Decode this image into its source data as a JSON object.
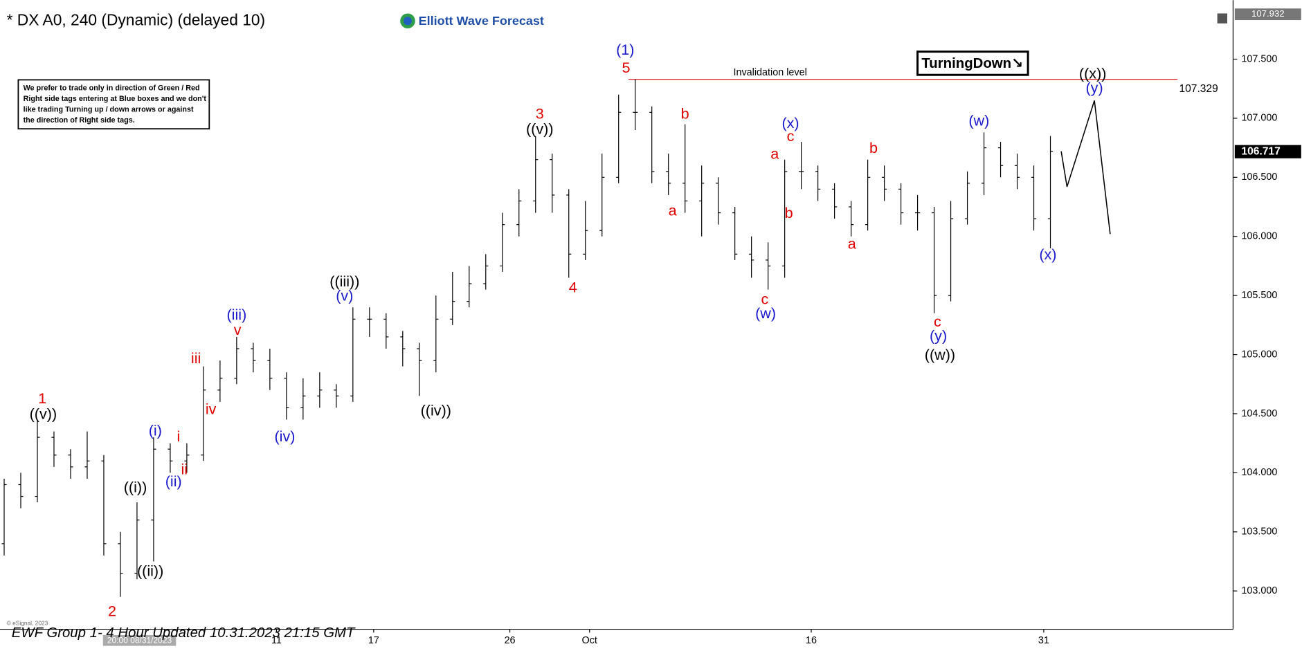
{
  "chart_data": {
    "type": "ohlc",
    "title": "* DX A0, 240 (Dynamic) (delayed 10)",
    "logo": "Elliott Wave Forecast",
    "note": [
      "We prefer to trade only in direction of Green / Red",
      "Right side tags entering at Blue boxes and we don't",
      "like trading Turning up / down arrows or against",
      "the direction of Right side tags."
    ],
    "signal": "TurningDown↘",
    "footer": "EWF Group 1- 4 Hour Updated 10.31.2023 21:15 GMT",
    "copyright": "© eSignal, 2023",
    "cursor_date": "20:00 08/31/2023",
    "axis_high": "107.932",
    "last_price": 106.717,
    "invalidation": {
      "text": "Invalidation level",
      "value": 107.329,
      "x": [
        37.6,
        70.65
      ],
      "color": "#e03030"
    },
    "xlim": [
      -0.25,
      74
    ],
    "ylim": [
      102.676,
      107.999
    ],
    "xticks": [
      {
        "value": 16.4,
        "label": "11"
      },
      {
        "value": 22.25,
        "label": "17"
      },
      {
        "value": 30.45,
        "label": "26"
      },
      {
        "value": 35.25,
        "label": "Oct"
      },
      {
        "value": 48.6,
        "label": "16"
      },
      {
        "value": 62.6,
        "label": "31"
      }
    ],
    "yticks": [
      {
        "value": 103,
        "label": "103.000"
      },
      {
        "value": 103.5,
        "label": "103.500"
      },
      {
        "value": 104,
        "label": "104.000"
      },
      {
        "value": 104.5,
        "label": "104.500"
      },
      {
        "value": 105,
        "label": "105.000"
      },
      {
        "value": 105.5,
        "label": "105.500"
      },
      {
        "value": 106,
        "label": "106.000"
      },
      {
        "value": 106.5,
        "label": "106.500"
      },
      {
        "value": 107,
        "label": "107.000"
      },
      {
        "value": 107.5,
        "label": "107.500"
      }
    ],
    "color": "#000000",
    "open": [
      103.4,
      103.9,
      103.8,
      104.3,
      104.15,
      104.05,
      104.1,
      103.4,
      103.15,
      103.6,
      104.2,
      104.1,
      104.15,
      104.7,
      104.8,
      105.05,
      104.95,
      104.8,
      104.55,
      104.65,
      104.7,
      104.65,
      105.3,
      105.3,
      105.15,
      105.05,
      104.95,
      105.3,
      105.45,
      105.6,
      105.75,
      106.1,
      106.3,
      106.65,
      106.35,
      105.85,
      106.05,
      106.5,
      107.05,
      107.05,
      106.55,
      106.45,
      106.3,
      106.45,
      106.2,
      105.85,
      105.8,
      105.75,
      106.55,
      106.55,
      106.4,
      106.25,
      106.1,
      106.5,
      106.4,
      106.2,
      106.2,
      105.5,
      106.15,
      106.45,
      106.75,
      106.6,
      106.5,
      106.15
    ],
    "high": [
      103.95,
      104.0,
      104.45,
      104.35,
      104.2,
      104.35,
      104.15,
      103.5,
      103.75,
      104.3,
      104.25,
      104.25,
      104.9,
      104.95,
      105.15,
      105.1,
      105.05,
      104.85,
      104.8,
      104.85,
      104.75,
      105.4,
      105.4,
      105.35,
      105.2,
      105.1,
      105.5,
      105.7,
      105.75,
      105.85,
      106.2,
      106.4,
      106.85,
      106.7,
      106.4,
      106.3,
      106.7,
      107.2,
      107.33,
      107.1,
      106.7,
      106.95,
      106.6,
      106.5,
      106.25,
      106.0,
      105.95,
      106.65,
      106.8,
      106.6,
      106.45,
      106.3,
      106.65,
      106.6,
      106.45,
      106.35,
      106.25,
      106.3,
      106.55,
      106.88,
      106.8,
      106.7,
      106.6,
      106.85
    ],
    "low": [
      103.3,
      103.7,
      103.75,
      104.05,
      103.95,
      103.95,
      103.3,
      102.95,
      103.1,
      103.25,
      104.0,
      104.0,
      104.1,
      104.6,
      104.75,
      104.85,
      104.7,
      104.45,
      104.45,
      104.55,
      104.55,
      104.6,
      105.15,
      105.05,
      104.9,
      104.65,
      104.85,
      105.25,
      105.4,
      105.55,
      105.7,
      106.0,
      106.2,
      106.2,
      105.65,
      105.8,
      106.0,
      106.45,
      106.9,
      106.45,
      106.35,
      106.2,
      106.0,
      106.1,
      105.8,
      105.65,
      105.55,
      105.65,
      106.4,
      106.3,
      106.15,
      106.0,
      106.05,
      106.3,
      106.1,
      106.05,
      105.35,
      105.45,
      106.1,
      106.35,
      106.5,
      106.4,
      106.05,
      105.9
    ],
    "close": [
      103.9,
      103.8,
      104.3,
      104.15,
      104.05,
      104.1,
      103.4,
      103.15,
      103.6,
      104.2,
      104.1,
      104.15,
      104.7,
      104.8,
      105.05,
      104.95,
      104.8,
      104.55,
      104.65,
      104.7,
      104.65,
      105.3,
      105.3,
      105.15,
      105.05,
      104.95,
      105.3,
      105.45,
      105.6,
      105.75,
      106.1,
      106.3,
      106.65,
      106.35,
      105.85,
      106.05,
      106.5,
      107.05,
      107.05,
      106.55,
      106.45,
      106.3,
      106.45,
      106.2,
      105.85,
      105.8,
      105.75,
      106.55,
      106.55,
      106.4,
      106.25,
      106.1,
      106.5,
      106.4,
      106.2,
      106.2,
      105.5,
      106.15,
      106.45,
      106.75,
      106.6,
      106.5,
      106.15,
      106.72
    ],
    "projection": {
      "x": [
        63.65,
        64,
        65.65,
        66.6
      ],
      "values": [
        106.72,
        106.42,
        107.15,
        106.02
      ]
    },
    "annotations": [
      {
        "text": "1",
        "color": "#e00000",
        "x": 2.3,
        "y": 104.62
      },
      {
        "text": "((v))",
        "color": "#000000",
        "x": 2.35,
        "y": 104.49
      },
      {
        "text": "2",
        "color": "#e00000",
        "x": 6.5,
        "y": 102.82
      },
      {
        "text": "((i))",
        "color": "#000000",
        "x": 7.9,
        "y": 103.87
      },
      {
        "text": "((ii))",
        "color": "#000000",
        "x": 8.8,
        "y": 103.16
      },
      {
        "text": "(i)",
        "color": "#1a1acc",
        "x": 9.1,
        "y": 104.35
      },
      {
        "text": "(ii)",
        "color": "#1a1acc",
        "x": 10.2,
        "y": 103.92
      },
      {
        "text": "i",
        "color": "#e00000",
        "x": 10.5,
        "y": 104.3
      },
      {
        "text": "ii",
        "color": "#e00000",
        "x": 10.85,
        "y": 104.02
      },
      {
        "text": "iii",
        "color": "#e00000",
        "x": 11.55,
        "y": 104.96
      },
      {
        "text": "iv",
        "color": "#e00000",
        "x": 12.45,
        "y": 104.53
      },
      {
        "text": "(iii)",
        "color": "#1a1acc",
        "x": 14.0,
        "y": 105.33
      },
      {
        "text": "v",
        "color": "#e00000",
        "x": 14.05,
        "y": 105.2
      },
      {
        "text": "(iv)",
        "color": "#1a1acc",
        "x": 16.9,
        "y": 104.3
      },
      {
        "text": "((iii))",
        "color": "#000000",
        "x": 20.5,
        "y": 105.61
      },
      {
        "text": "(v)",
        "color": "#1a1acc",
        "x": 20.5,
        "y": 105.49
      },
      {
        "text": "((iv))",
        "color": "#000000",
        "x": 26.0,
        "y": 104.52
      },
      {
        "text": "3",
        "color": "#e00000",
        "x": 32.25,
        "y": 107.03
      },
      {
        "text": "((v))",
        "color": "#000000",
        "x": 32.25,
        "y": 106.9
      },
      {
        "text": "4",
        "color": "#e00000",
        "x": 34.25,
        "y": 105.56
      },
      {
        "text": "(1)",
        "color": "#1a1acc",
        "x": 37.4,
        "y": 107.57
      },
      {
        "text": "5",
        "color": "#e00000",
        "x": 37.45,
        "y": 107.42
      },
      {
        "text": "a",
        "color": "#e00000",
        "x": 40.25,
        "y": 106.21
      },
      {
        "text": "b",
        "color": "#e00000",
        "x": 41.0,
        "y": 107.03
      },
      {
        "text": "c",
        "color": "#e00000",
        "x": 45.8,
        "y": 105.46
      },
      {
        "text": "(w)",
        "color": "#1a1acc",
        "x": 45.85,
        "y": 105.34
      },
      {
        "text": "a",
        "color": "#e00000",
        "x": 46.4,
        "y": 106.69
      },
      {
        "text": "b",
        "color": "#e00000",
        "x": 47.25,
        "y": 106.19
      },
      {
        "text": "(x)",
        "color": "#1a1acc",
        "x": 47.35,
        "y": 106.95
      },
      {
        "text": "c",
        "color": "#e00000",
        "x": 47.35,
        "y": 106.84
      },
      {
        "text": "a",
        "color": "#e00000",
        "x": 51.05,
        "y": 105.93
      },
      {
        "text": "b",
        "color": "#e00000",
        "x": 52.35,
        "y": 106.74
      },
      {
        "text": "c",
        "color": "#e00000",
        "x": 56.2,
        "y": 105.27
      },
      {
        "text": "(y)",
        "color": "#1a1acc",
        "x": 56.25,
        "y": 105.15
      },
      {
        "text": "((w))",
        "color": "#000000",
        "x": 56.35,
        "y": 104.99
      },
      {
        "text": "(w)",
        "color": "#1a1acc",
        "x": 58.7,
        "y": 106.97
      },
      {
        "text": "(x)",
        "color": "#1a1acc",
        "x": 62.85,
        "y": 105.84
      },
      {
        "text": "((x))",
        "color": "#000000",
        "x": 65.55,
        "y": 107.37
      },
      {
        "text": "(y)",
        "color": "#1a1acc",
        "x": 65.65,
        "y": 107.25
      }
    ]
  }
}
